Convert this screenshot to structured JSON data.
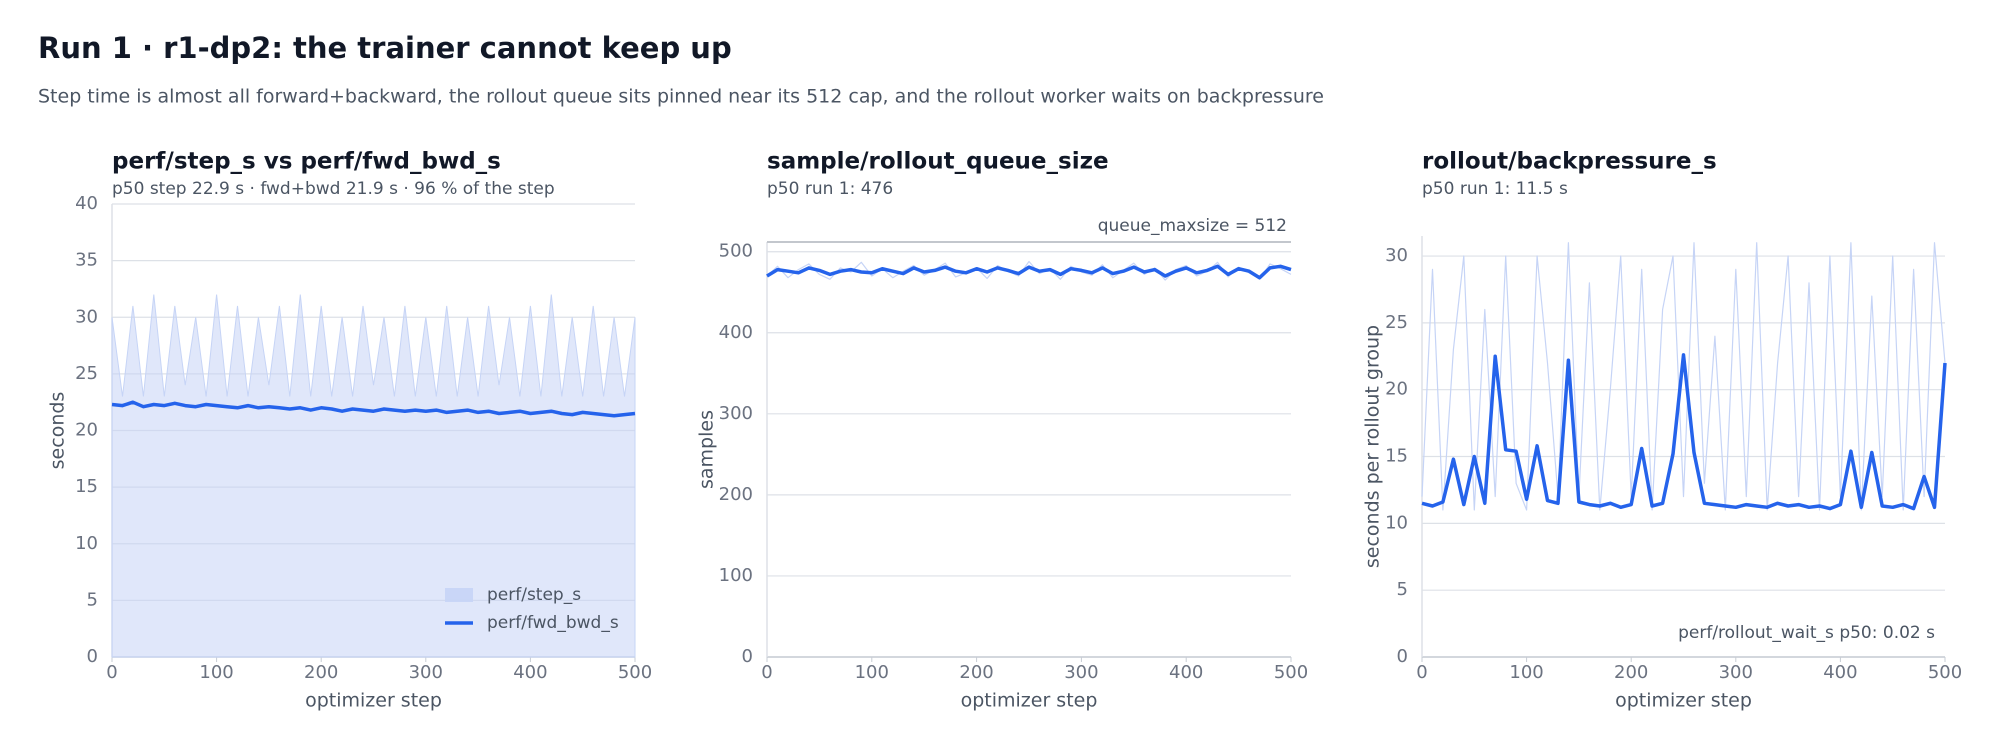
{
  "title": "Run 1 · r1-dp2: the trainer cannot keep up",
  "subtitle": "Step time is almost all forward+backward, the rollout queue sits pinned near its 512 cap, and the rollout worker waits on backpressure",
  "chart_data": [
    {
      "type": "line",
      "title": "perf/step_s  vs  perf/fwd_bwd_s",
      "subtitle": "p50  step 22.9 s   ·   fwd+bwd 21.9 s   ·   96 % of the step",
      "x_label": "optimizer step",
      "y_label": "seconds",
      "xlim": [
        0,
        500
      ],
      "xticks": [
        0,
        100,
        200,
        300,
        400,
        500
      ],
      "ylim": [
        0,
        40
      ],
      "yticks": [
        0,
        5,
        10,
        15,
        20,
        25,
        30,
        35,
        40
      ],
      "grid": true,
      "legend": "lower right",
      "x": [
        0,
        10,
        20,
        30,
        40,
        50,
        60,
        70,
        80,
        90,
        100,
        110,
        120,
        130,
        140,
        150,
        160,
        170,
        180,
        190,
        200,
        210,
        220,
        230,
        240,
        250,
        260,
        270,
        280,
        290,
        300,
        310,
        320,
        330,
        340,
        350,
        360,
        370,
        380,
        390,
        400,
        410,
        420,
        430,
        440,
        450,
        460,
        470,
        480,
        490,
        500
      ],
      "series": [
        {
          "name": "perf/step_s",
          "color": "#c6d4f6",
          "area": true,
          "line_width": 1,
          "values": [
            30,
            23,
            31,
            23,
            32,
            23,
            31,
            24,
            30,
            23,
            32,
            23,
            31,
            23,
            30,
            24,
            31,
            23,
            32,
            23,
            31,
            23,
            30,
            23,
            31,
            24,
            30,
            23,
            31,
            23,
            30,
            23,
            31,
            23,
            30,
            23,
            31,
            24,
            30,
            23,
            31,
            23,
            32,
            23,
            30,
            23,
            31,
            23,
            30,
            23,
            30
          ]
        },
        {
          "name": "perf/fwd_bwd_s",
          "color": "#2563eb",
          "area": false,
          "line_width": 3.5,
          "values": [
            22.3,
            22.2,
            22.5,
            22.1,
            22.3,
            22.2,
            22.4,
            22.2,
            22.1,
            22.3,
            22.2,
            22.1,
            22.0,
            22.2,
            22.0,
            22.1,
            22.0,
            21.9,
            22.0,
            21.8,
            22.0,
            21.9,
            21.7,
            21.9,
            21.8,
            21.7,
            21.9,
            21.8,
            21.7,
            21.8,
            21.7,
            21.8,
            21.6,
            21.7,
            21.8,
            21.6,
            21.7,
            21.5,
            21.6,
            21.7,
            21.5,
            21.6,
            21.7,
            21.5,
            21.4,
            21.6,
            21.5,
            21.4,
            21.3,
            21.4,
            21.5
          ]
        }
      ]
    },
    {
      "type": "line",
      "title": "sample/rollout_queue_size",
      "subtitle": "p50  run 1: 476",
      "x_label": "optimizer step",
      "y_label": "samples",
      "xlim": [
        0,
        500
      ],
      "xticks": [
        0,
        100,
        200,
        300,
        400,
        500
      ],
      "ylim": [
        0,
        512
      ],
      "yticks": [
        0,
        100,
        200,
        300,
        400,
        500
      ],
      "grid": true,
      "reference_line": {
        "value": 512,
        "label": "queue_maxsize = 512"
      },
      "x": [
        0,
        10,
        20,
        30,
        40,
        50,
        60,
        70,
        80,
        90,
        100,
        110,
        120,
        130,
        140,
        150,
        160,
        170,
        180,
        190,
        200,
        210,
        220,
        230,
        240,
        250,
        260,
        270,
        280,
        290,
        300,
        310,
        320,
        330,
        340,
        350,
        360,
        370,
        380,
        390,
        400,
        410,
        420,
        430,
        440,
        450,
        460,
        470,
        480,
        490,
        500
      ],
      "series": [
        {
          "color": "#c6d4f6",
          "area": false,
          "line_width": 1.2,
          "values": [
            470,
            482,
            468,
            478,
            485,
            472,
            466,
            480,
            475,
            487,
            470,
            479,
            468,
            476,
            483,
            471,
            478,
            486,
            469,
            474,
            480,
            467,
            483,
            476,
            470,
            488,
            473,
            479,
            466,
            482,
            475,
            471,
            484,
            468,
            477,
            486,
            472,
            480,
            465,
            478,
            483,
            470,
            476,
            487,
            469,
            481,
            474,
            466,
            485,
            479,
            472
          ]
        },
        {
          "color": "#2563eb",
          "area": false,
          "line_width": 3.5,
          "values": [
            470,
            478,
            476,
            474,
            480,
            477,
            472,
            476,
            478,
            475,
            474,
            479,
            476,
            473,
            480,
            475,
            477,
            481,
            476,
            474,
            479,
            475,
            480,
            477,
            473,
            481,
            476,
            478,
            472,
            479,
            477,
            474,
            480,
            473,
            476,
            481,
            475,
            478,
            470,
            476,
            480,
            474,
            477,
            482,
            472,
            479,
            476,
            468,
            480,
            482,
            478
          ]
        }
      ]
    },
    {
      "type": "line",
      "title": "rollout/backpressure_s",
      "subtitle": "p50  run 1: 11.5 s",
      "x_label": "optimizer step",
      "y_label": "seconds per rollout group",
      "note": "perf/rollout_wait_s p50: 0.02 s",
      "xlim": [
        0,
        500
      ],
      "xticks": [
        0,
        100,
        200,
        300,
        400,
        500
      ],
      "ylim": [
        0,
        31.5
      ],
      "yticks": [
        0,
        5,
        10,
        15,
        20,
        25,
        30
      ],
      "grid": true,
      "x": [
        0,
        10,
        20,
        30,
        40,
        50,
        60,
        70,
        80,
        90,
        100,
        110,
        120,
        130,
        140,
        150,
        160,
        170,
        180,
        190,
        200,
        210,
        220,
        230,
        240,
        250,
        260,
        270,
        280,
        290,
        300,
        310,
        320,
        330,
        340,
        350,
        360,
        370,
        380,
        390,
        400,
        410,
        420,
        430,
        440,
        450,
        460,
        470,
        480,
        490,
        500
      ],
      "series": [
        {
          "color": "#c6d4f6",
          "area": false,
          "line_width": 1.2,
          "values": [
            12,
            29,
            11,
            23,
            30,
            11,
            26,
            12,
            30,
            13,
            11,
            30,
            22,
            12,
            31,
            12,
            28,
            11,
            20,
            30,
            12,
            29,
            11,
            26,
            30,
            12,
            31,
            13,
            24,
            11,
            29,
            12,
            31,
            11,
            22,
            30,
            12,
            28,
            11,
            30,
            12,
            31,
            11,
            27,
            12,
            30,
            11,
            29,
            12,
            31,
            22
          ]
        },
        {
          "color": "#2563eb",
          "area": false,
          "line_width": 3.5,
          "values": [
            11.5,
            11.3,
            11.6,
            14.8,
            11.4,
            15.0,
            11.5,
            22.5,
            15.5,
            15.4,
            11.8,
            15.8,
            11.7,
            11.5,
            22.2,
            11.6,
            11.4,
            11.3,
            11.5,
            11.2,
            11.4,
            15.6,
            11.3,
            11.5,
            15.2,
            22.6,
            15.3,
            11.5,
            11.4,
            11.3,
            11.2,
            11.4,
            11.3,
            11.2,
            11.5,
            11.3,
            11.4,
            11.2,
            11.3,
            11.1,
            11.4,
            15.4,
            11.2,
            15.3,
            11.3,
            11.2,
            11.4,
            11.1,
            13.5,
            11.2,
            22.0
          ]
        }
      ]
    }
  ]
}
